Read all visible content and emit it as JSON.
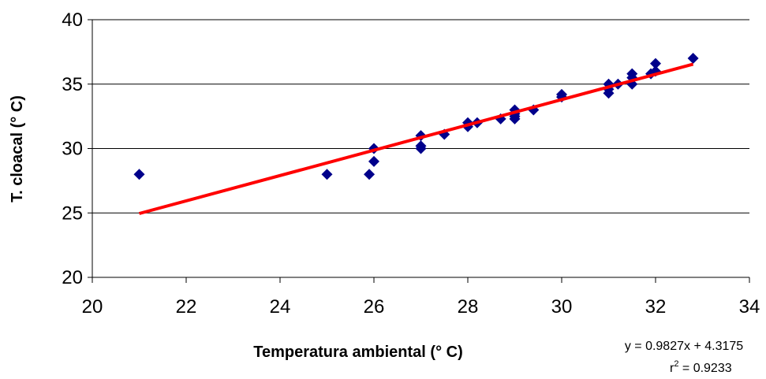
{
  "chart_data": {
    "type": "scatter",
    "title": "",
    "xlabel": "Temperatura ambiental (° C)",
    "ylabel": "T. cloacal (° C)",
    "xlim": [
      20,
      34
    ],
    "ylim": [
      20,
      40
    ],
    "x_ticks": [
      "20",
      "22",
      "24",
      "26",
      "28",
      "30",
      "32",
      "34"
    ],
    "y_ticks": [
      "20",
      "25",
      "30",
      "35",
      "40"
    ],
    "grid": "horizontal",
    "series": [
      {
        "color": "#00008B",
        "marker": "diamond",
        "x": [
          21,
          25,
          25.9,
          26,
          26,
          27,
          27,
          27,
          27.5,
          28,
          28,
          28.2,
          28.7,
          29,
          29,
          29,
          29,
          29.4,
          30,
          30,
          31,
          31,
          31,
          31.2,
          31.5,
          31.5,
          31.5,
          31.9,
          32,
          32,
          32.8
        ],
        "y": [
          28,
          28,
          28,
          30,
          29,
          31,
          30.2,
          30,
          31.1,
          32,
          31.7,
          32,
          32.3,
          33,
          32.7,
          32.5,
          32.3,
          33,
          34.2,
          34,
          35,
          34.6,
          34.3,
          35,
          35.8,
          35.5,
          35,
          35.8,
          36.6,
          36,
          37
        ]
      }
    ],
    "trendline": {
      "color": "#FF0000",
      "x_range": [
        21,
        32.8
      ],
      "slope": 0.9827,
      "intercept": 4.3175
    },
    "annotations": {
      "equation": "y = 0.9827x + 4.3175",
      "r2_prefix": "r",
      "r2_sup": "2",
      "r2_value": " = 0.9233"
    }
  }
}
